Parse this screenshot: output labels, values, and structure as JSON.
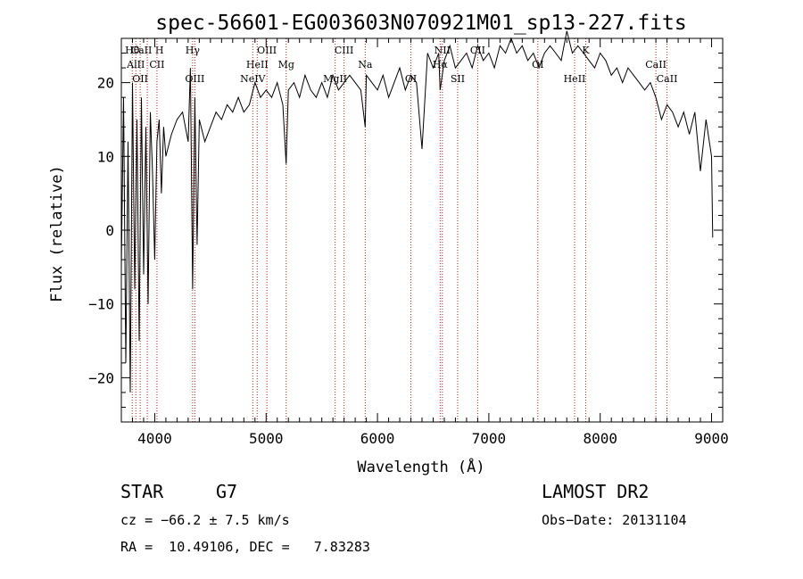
{
  "chart_data": {
    "type": "line",
    "title": "spec-56601-EG003603N070921M01_sp13-227.fits",
    "xlabel": "Wavelength (Å)",
    "ylabel": "Flux (relative)",
    "xlim": [
      3700,
      9100
    ],
    "ylim": [
      -26,
      26
    ],
    "xticks": [
      4000,
      5000,
      6000,
      7000,
      8000,
      9000
    ],
    "yticks": [
      -20,
      -10,
      0,
      10,
      20
    ],
    "grid": false,
    "series": [
      {
        "x": [
          3700,
          3720,
          3740,
          3760,
          3780,
          3800,
          3820,
          3840,
          3860,
          3880,
          3900,
          3920,
          3940,
          3960,
          3980,
          4000,
          4020,
          4040,
          4060,
          4080,
          4100,
          4150,
          4200,
          4250,
          4300,
          4320,
          4340,
          4360,
          4380,
          4400,
          4450,
          4500,
          4550,
          4600,
          4650,
          4700,
          4750,
          4800,
          4850,
          4900,
          4950,
          5000,
          5050,
          5100,
          5150,
          5180,
          5200,
          5250,
          5300,
          5350,
          5400,
          5450,
          5500,
          5550,
          5600,
          5650,
          5700,
          5750,
          5800,
          5850,
          5890,
          5900,
          5950,
          6000,
          6050,
          6100,
          6150,
          6200,
          6250,
          6300,
          6350,
          6400,
          6450,
          6500,
          6550,
          6563,
          6600,
          6650,
          6700,
          6750,
          6800,
          6850,
          6900,
          6950,
          7000,
          7050,
          7100,
          7150,
          7200,
          7250,
          7300,
          7350,
          7400,
          7450,
          7500,
          7550,
          7600,
          7650,
          7700,
          7750,
          7800,
          7850,
          7900,
          7950,
          8000,
          8050,
          8100,
          8150,
          8200,
          8250,
          8300,
          8350,
          8400,
          8450,
          8500,
          8550,
          8600,
          8650,
          8700,
          8750,
          8800,
          8850,
          8900,
          8950,
          9000,
          9010
        ],
        "y": [
          -5,
          18,
          -18,
          12,
          -22,
          20,
          -8,
          15,
          -15,
          18,
          -6,
          14,
          -10,
          16,
          8,
          -4,
          12,
          15,
          5,
          14,
          10,
          13,
          15,
          16,
          12,
          22,
          -8,
          18,
          -2,
          15,
          12,
          14,
          16,
          15,
          17,
          16,
          18,
          16,
          17,
          20,
          18,
          19,
          18,
          20,
          17,
          9,
          19,
          20,
          18,
          21,
          19,
          18,
          20,
          18,
          21,
          19,
          20,
          21,
          20,
          19,
          14,
          21,
          20,
          19,
          21,
          18,
          20,
          22,
          19,
          21,
          20,
          11,
          24,
          22,
          24,
          19,
          23,
          25,
          22,
          23,
          24,
          22,
          25,
          23,
          24,
          22,
          25,
          24,
          26,
          24,
          25,
          23,
          24,
          22,
          24,
          25,
          24,
          23,
          27,
          24,
          25,
          24,
          23,
          22,
          24,
          23,
          21,
          22,
          20,
          22,
          21,
          20,
          19,
          20,
          18,
          15,
          17,
          16,
          14,
          16,
          13,
          16,
          8,
          15,
          10,
          -1
        ]
      }
    ],
    "lines": [
      {
        "name": "Hθ",
        "wavelength": 3798
      },
      {
        "name": "AlII",
        "wavelength": 3830
      },
      {
        "name": "OII",
        "wavelength": 3869
      },
      {
        "name": "CaII H",
        "wavelength": 3933
      },
      {
        "name": "CII",
        "wavelength": 4020
      },
      {
        "name": "OIII",
        "wavelength": 4360
      },
      {
        "name": "Hγ",
        "wavelength": 4340
      },
      {
        "name": "HeII",
        "wavelength": 4920
      },
      {
        "name": "NeIV",
        "wavelength": 4880
      },
      {
        "name": "OIII",
        "wavelength": 5007
      },
      {
        "name": "Mg",
        "wavelength": 5180
      },
      {
        "name": "MgII",
        "wavelength": 5620
      },
      {
        "name": "CIII",
        "wavelength": 5700
      },
      {
        "name": "Na",
        "wavelength": 5890
      },
      {
        "name": "OI",
        "wavelength": 6300
      },
      {
        "name": "NII",
        "wavelength": 6583
      },
      {
        "name": "Hα",
        "wavelength": 6563
      },
      {
        "name": "SII",
        "wavelength": 6720
      },
      {
        "name": "CII",
        "wavelength": 6900
      },
      {
        "name": "OI",
        "wavelength": 7440
      },
      {
        "name": "HeII",
        "wavelength": 7770
      },
      {
        "name": "K",
        "wavelength": 7870
      },
      {
        "name": "CaII",
        "wavelength": 8500
      },
      {
        "name": "CaII",
        "wavelength": 8600
      }
    ]
  },
  "info": {
    "object_class": "STAR",
    "subclass": "G7",
    "survey": "LAMOST DR2",
    "cz": "cz = −66.2 ± 7.5 km/s",
    "obs_date": "Obs−Date: 20131104",
    "coords": "RA =  10.49106, DEC =   7.83283"
  },
  "colors": {
    "spectrum": "#000000",
    "line_marker": "#b22222",
    "axes": "#000000"
  }
}
